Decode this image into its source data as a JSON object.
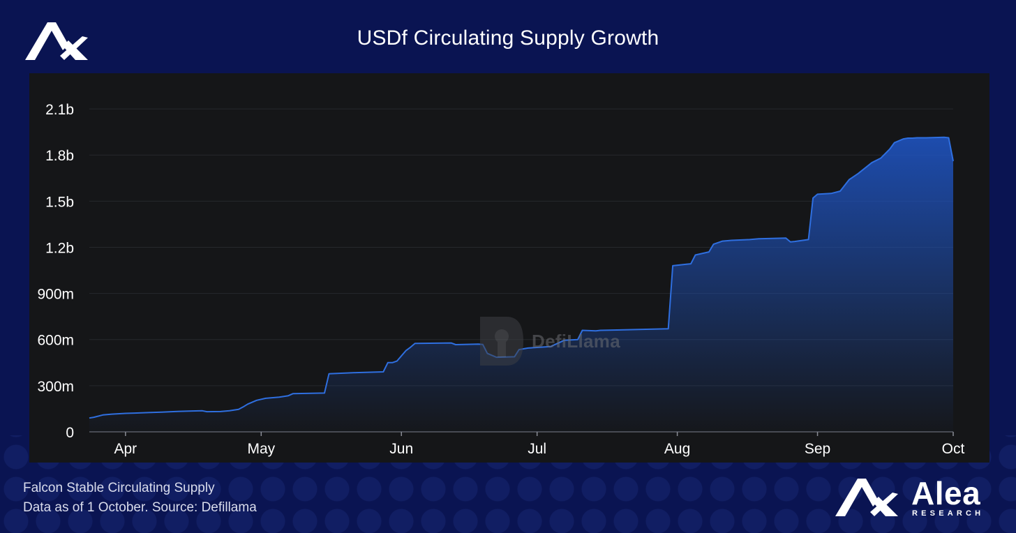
{
  "header": {
    "title": "USDf Circulating Supply Growth"
  },
  "watermark": {
    "label": "DefiLlama"
  },
  "footer": {
    "line1": "Falcon Stable Circulating Supply",
    "line2": "Data as of 1 October. Source: Defillama"
  },
  "brand": {
    "name": "Alea",
    "tagline": "RESEARCH"
  },
  "colors": {
    "background": "#0a1452",
    "panel": "#151618",
    "line": "#2f6fe0",
    "fill_top": "#1f56c8",
    "text": "#ffffff"
  },
  "chart_data": {
    "type": "area",
    "title": "USDf Circulating Supply Growth",
    "x_unit": "date",
    "y_unit": "USD",
    "ylim": [
      0,
      2250000000
    ],
    "yticks": [
      0,
      300000000,
      600000000,
      900000000,
      1200000000,
      1500000000,
      1800000000,
      2100000000
    ],
    "ytick_labels": [
      "0",
      "300m",
      "600m",
      "900m",
      "1.2b",
      "1.5b",
      "1.8b",
      "2.1b"
    ],
    "xticks": [
      "2025-04-01",
      "2025-05-01",
      "2025-06-01",
      "2025-07-01",
      "2025-08-01",
      "2025-09-01",
      "2025-10-01"
    ],
    "xtick_labels": [
      "Apr",
      "May",
      "Jun",
      "Jul",
      "Aug",
      "Sep",
      "Oct"
    ],
    "xlim": [
      "2025-03-24",
      "2025-10-01"
    ],
    "grid": true,
    "series": [
      {
        "x": [
          "2025-03-24",
          "2025-03-25",
          "2025-03-27",
          "2025-03-29",
          "2025-04-01",
          "2025-04-03",
          "2025-04-06",
          "2025-04-09",
          "2025-04-12",
          "2025-04-15",
          "2025-04-18",
          "2025-04-19",
          "2025-04-22",
          "2025-04-24",
          "2025-04-26",
          "2025-04-27",
          "2025-04-28",
          "2025-04-30",
          "2025-05-02",
          "2025-05-05",
          "2025-05-07",
          "2025-05-08",
          "2025-05-15",
          "2025-05-16",
          "2025-05-22",
          "2025-05-28",
          "2025-05-29",
          "2025-05-30",
          "2025-05-31",
          "2025-06-02",
          "2025-06-03",
          "2025-06-04",
          "2025-06-12",
          "2025-06-13",
          "2025-06-18",
          "2025-06-19",
          "2025-06-20",
          "2025-06-22",
          "2025-06-26",
          "2025-06-27",
          "2025-06-28",
          "2025-06-29",
          "2025-07-04",
          "2025-07-07",
          "2025-07-10",
          "2025-07-11",
          "2025-07-14",
          "2025-07-15",
          "2025-07-30",
          "2025-07-31",
          "2025-08-03",
          "2025-08-04",
          "2025-08-05",
          "2025-08-08",
          "2025-08-09",
          "2025-08-11",
          "2025-08-13",
          "2025-08-17",
          "2025-08-19",
          "2025-08-25",
          "2025-08-26",
          "2025-08-27",
          "2025-08-30",
          "2025-08-31",
          "2025-09-01",
          "2025-09-04",
          "2025-09-06",
          "2025-09-08",
          "2025-09-10",
          "2025-09-13",
          "2025-09-15",
          "2025-09-17",
          "2025-09-18",
          "2025-09-20",
          "2025-09-21",
          "2025-09-22",
          "2025-09-23",
          "2025-09-25",
          "2025-09-29",
          "2025-09-30",
          "2025-10-01"
        ],
        "values": [
          90000000,
          95000000,
          110000000,
          115000000,
          120000000,
          122000000,
          125000000,
          128000000,
          132000000,
          135000000,
          137000000,
          131000000,
          132000000,
          137000000,
          146000000,
          162000000,
          180000000,
          205000000,
          218000000,
          226000000,
          235000000,
          248000000,
          252000000,
          378000000,
          385000000,
          390000000,
          450000000,
          450000000,
          460000000,
          528000000,
          550000000,
          575000000,
          578000000,
          567000000,
          570000000,
          568000000,
          510000000,
          485000000,
          488000000,
          535000000,
          540000000,
          545000000,
          555000000,
          595000000,
          600000000,
          660000000,
          657000000,
          660000000,
          670000000,
          1080000000,
          1090000000,
          1093000000,
          1150000000,
          1170000000,
          1220000000,
          1240000000,
          1245000000,
          1250000000,
          1255000000,
          1260000000,
          1235000000,
          1238000000,
          1250000000,
          1520000000,
          1545000000,
          1550000000,
          1565000000,
          1640000000,
          1680000000,
          1750000000,
          1780000000,
          1840000000,
          1880000000,
          1905000000,
          1910000000,
          1910000000,
          1912000000,
          1912000000,
          1915000000,
          1912000000,
          1760000000
        ]
      }
    ]
  }
}
